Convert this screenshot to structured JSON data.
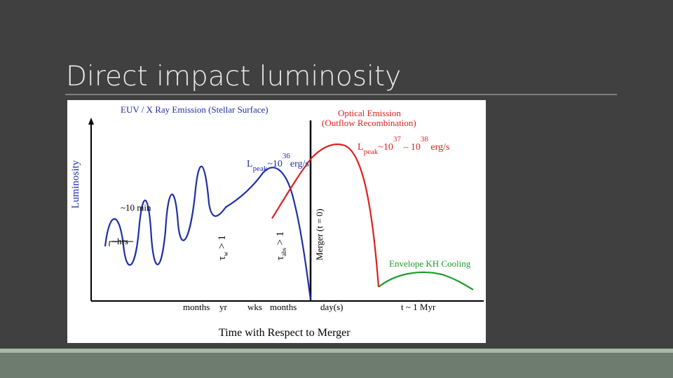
{
  "slide": {
    "title": "Direct impact luminosity",
    "figure": {
      "euv_label": "EUV / X  Ray Emission (Stellar Surface)",
      "optical_label": [
        "Optical Emission",
        "(Outflow Recombination)"
      ],
      "y_label": "Luminosity",
      "x_label": "Time with Respect to Merger",
      "euv_peak": [
        "L",
        "peak",
        "~10",
        "36",
        "erg/s"
      ],
      "optical_peak": [
        "L",
        "peak",
        "~10",
        "37",
        " – 10",
        "38",
        " erg/s"
      ],
      "ten_min": "~10 min",
      "hrs": "~hrs",
      "tau_w": [
        "τ",
        "w",
        " > 1"
      ],
      "tau_abs": [
        "τ",
        "abs",
        " > 1"
      ],
      "merger": "Merger (t = 0)",
      "kh_cooling": "Envelope KH Cooling",
      "x_ticks": [
        "months",
        "yr",
        "wks",
        "months",
        "day(s)",
        "t ~ 1 Myr"
      ]
    }
  }
}
